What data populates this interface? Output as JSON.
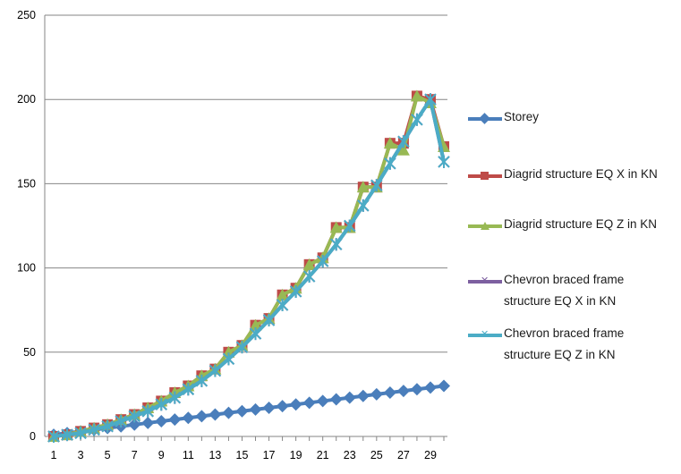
{
  "chart_data": {
    "type": "line",
    "title": "",
    "xlabel": "",
    "ylabel": "",
    "ylim": [
      0,
      250
    ],
    "yticks": [
      0,
      50,
      100,
      150,
      200,
      250
    ],
    "x": [
      1,
      2,
      3,
      4,
      5,
      6,
      7,
      8,
      9,
      10,
      11,
      12,
      13,
      14,
      15,
      16,
      17,
      18,
      19,
      20,
      21,
      22,
      23,
      24,
      25,
      26,
      27,
      28,
      29,
      30
    ],
    "xtick_labels": [
      "1",
      "3",
      "5",
      "7",
      "9",
      "11",
      "13",
      "15",
      "17",
      "19",
      "21",
      "23",
      "25",
      "27",
      "29"
    ],
    "grid": "horizontal",
    "legend_position": "right",
    "series": [
      {
        "name": "Storey",
        "color": "#4a7ebb",
        "marker": "diamond",
        "values": [
          1,
          2,
          3,
          4,
          5,
          6,
          7,
          8,
          9,
          10,
          11,
          12,
          13,
          14,
          15,
          16,
          17,
          18,
          19,
          20,
          21,
          22,
          23,
          24,
          25,
          26,
          27,
          28,
          29,
          30
        ]
      },
      {
        "name": "Diagrid structure EQ X in KN",
        "color": "#be4b48",
        "marker": "square",
        "values": [
          0,
          1,
          3,
          5,
          7,
          10,
          13,
          17,
          21,
          26,
          30,
          36,
          40,
          50,
          54,
          66,
          70,
          84,
          88,
          102,
          106,
          124,
          124,
          148,
          148,
          174,
          174,
          202,
          200,
          172
        ]
      },
      {
        "name": "Diagrid structure EQ Z in KN",
        "color": "#98b954",
        "marker": "triangle",
        "values": [
          0,
          1,
          3,
          5,
          7,
          10,
          13,
          17,
          21,
          26,
          30,
          36,
          40,
          50,
          54,
          66,
          70,
          84,
          88,
          102,
          106,
          124,
          124,
          148,
          148,
          174,
          170,
          202,
          198,
          172
        ]
      },
      {
        "name": "Chevron braced frame structure EQ X in KN",
        "color": "#7d60a0",
        "marker": "x",
        "values": [
          0,
          1,
          2,
          4,
          6,
          9,
          12,
          15,
          19,
          23,
          28,
          33,
          39,
          46,
          53,
          61,
          69,
          78,
          86,
          95,
          104,
          114,
          125,
          137,
          149,
          162,
          175,
          188,
          200,
          163
        ]
      },
      {
        "name": "Chevron braced frame structure EQ Z in KN",
        "color": "#4bacc6",
        "marker": "x",
        "values": [
          0,
          1,
          2,
          4,
          6,
          9,
          12,
          15,
          19,
          23,
          28,
          33,
          39,
          46,
          53,
          61,
          69,
          78,
          86,
          95,
          104,
          114,
          125,
          137,
          149,
          162,
          175,
          188,
          200,
          163
        ]
      }
    ]
  },
  "legend": {
    "items": [
      {
        "lines": [
          "Storey"
        ]
      },
      {
        "lines": [
          "Diagrid structure EQ X in KN"
        ]
      },
      {
        "lines": [
          "Diagrid structure EQ Z in KN"
        ]
      },
      {
        "lines": [
          "Chevron braced frame",
          "structure EQ X in KN"
        ]
      },
      {
        "lines": [
          "Chevron braced frame",
          "structure EQ Z in KN"
        ]
      }
    ]
  }
}
